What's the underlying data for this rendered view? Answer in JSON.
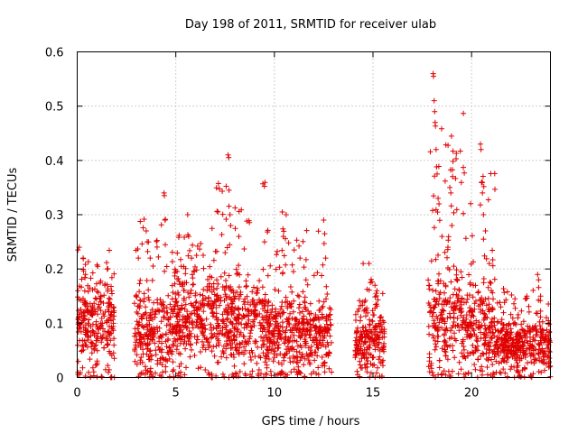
{
  "chart_data": {
    "type": "scatter",
    "title": "Day 198 of 2011, SRMTID for receiver ulab",
    "xlabel": "GPS time / hours",
    "ylabel": "SRMTID / TECUs",
    "xlim": [
      0,
      24
    ],
    "ylim": [
      0,
      0.6
    ],
    "xticks": [
      0,
      5,
      10,
      15,
      20
    ],
    "xtick_labels": [
      "0",
      "5",
      "10",
      "15",
      "20"
    ],
    "yticks": [
      0,
      0.1,
      0.2,
      0.3,
      0.4,
      0.5,
      0.6
    ],
    "ytick_labels": [
      "0",
      "0.1",
      "0.2",
      "0.3",
      "0.4",
      "0.5",
      "0.6"
    ],
    "grid": true,
    "marker": "+",
    "color": "#e00000",
    "series": [
      {
        "name": "SRMTID",
        "clusters": [
          {
            "start": 0.0,
            "end": 1.9,
            "typical": 0.1,
            "spread": 0.05,
            "peak": 0.26,
            "density": 140
          },
          {
            "start": 2.9,
            "end": 4.9,
            "typical": 0.08,
            "spread": 0.05,
            "peak": 0.34,
            "density": 140
          },
          {
            "start": 4.9,
            "end": 7.0,
            "typical": 0.11,
            "spread": 0.05,
            "peak": 0.31,
            "density": 140
          },
          {
            "start": 7.0,
            "end": 9.6,
            "typical": 0.1,
            "spread": 0.05,
            "peak": 0.41,
            "density": 140
          },
          {
            "start": 9.6,
            "end": 12.9,
            "typical": 0.08,
            "spread": 0.04,
            "peak": 0.31,
            "density": 140
          },
          {
            "start": 14.1,
            "end": 15.6,
            "typical": 0.07,
            "spread": 0.04,
            "peak": 0.21,
            "density": 140
          },
          {
            "start": 17.8,
            "end": 19.6,
            "typical": 0.11,
            "spread": 0.06,
            "peak": 0.56,
            "density": 140
          },
          {
            "start": 19.6,
            "end": 21.2,
            "typical": 0.09,
            "spread": 0.05,
            "peak": 0.43,
            "density": 140
          },
          {
            "start": 21.2,
            "end": 24.0,
            "typical": 0.06,
            "spread": 0.03,
            "peak": 0.19,
            "density": 140
          }
        ],
        "points": [
          [
            0.03,
            0.16
          ],
          [
            0.1,
            0.24
          ],
          [
            0.3,
            0.22
          ],
          [
            0.42,
            0.19
          ],
          [
            0.55,
            0.1
          ],
          [
            0.95,
            0.06
          ],
          [
            1.05,
            0.09
          ],
          [
            1.4,
            0.17
          ],
          [
            1.52,
            0.2
          ],
          [
            1.58,
            0.13
          ],
          [
            1.7,
            0.0
          ],
          [
            1.75,
            0.0
          ],
          [
            3.5,
            0.27
          ],
          [
            3.55,
            0.25
          ],
          [
            3.7,
            0.22
          ],
          [
            4.4,
            0.34
          ],
          [
            4.42,
            0.335
          ],
          [
            4.45,
            0.29
          ],
          [
            4.9,
            0.0
          ],
          [
            5.6,
            0.3
          ],
          [
            5.65,
            0.26
          ],
          [
            5.8,
            0.22
          ],
          [
            6.8,
            0.0
          ],
          [
            6.85,
            0.0
          ],
          [
            7.5,
            0.23
          ],
          [
            7.65,
            0.41
          ],
          [
            7.68,
            0.405
          ],
          [
            7.7,
            0.345
          ],
          [
            7.75,
            0.3
          ],
          [
            7.78,
            0.28
          ],
          [
            8.2,
            0.26
          ],
          [
            9.5,
            0.25
          ],
          [
            10.4,
            0.305
          ],
          [
            10.45,
            0.26
          ],
          [
            10.6,
            0.3
          ],
          [
            11.0,
            0.235
          ],
          [
            11.3,
            0.22
          ],
          [
            11.6,
            0.18
          ],
          [
            12.5,
            0.29
          ],
          [
            12.55,
            0.265
          ],
          [
            12.6,
            0.22
          ],
          [
            14.5,
            0.21
          ],
          [
            14.8,
            0.21
          ],
          [
            15.1,
            0.17
          ],
          [
            15.2,
            0.16
          ],
          [
            18.05,
            0.56
          ],
          [
            18.07,
            0.555
          ],
          [
            18.1,
            0.51
          ],
          [
            18.13,
            0.49
          ],
          [
            18.15,
            0.47
          ],
          [
            18.2,
            0.42
          ],
          [
            18.25,
            0.375
          ],
          [
            18.3,
            0.33
          ],
          [
            18.35,
            0.32
          ],
          [
            18.5,
            0.26
          ],
          [
            18.9,
            0.35
          ],
          [
            18.95,
            0.34
          ],
          [
            19.0,
            0.28
          ],
          [
            18.8,
            0.24
          ],
          [
            20.45,
            0.43
          ],
          [
            20.48,
            0.42
          ],
          [
            20.52,
            0.36
          ],
          [
            20.55,
            0.34
          ],
          [
            20.6,
            0.3
          ],
          [
            20.7,
            0.27
          ],
          [
            20.9,
            0.21
          ],
          [
            21.0,
            0.16
          ],
          [
            22.8,
            0.15
          ],
          [
            23.35,
            0.19
          ],
          [
            23.4,
            0.18
          ],
          [
            23.5,
            0.15
          ],
          [
            23.9,
            0.06
          ]
        ]
      }
    ]
  }
}
